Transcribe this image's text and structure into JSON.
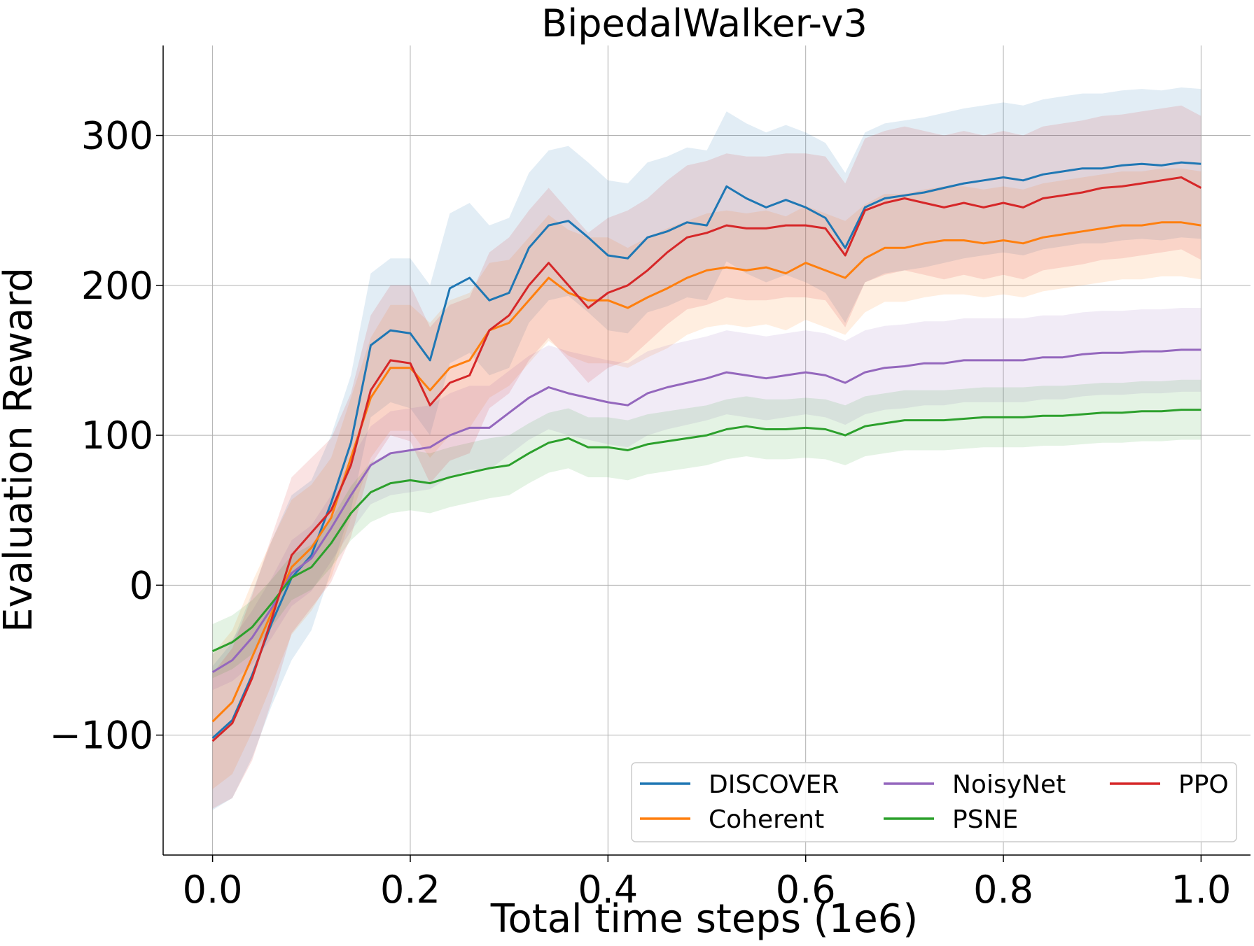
{
  "chart_data": {
    "type": "line",
    "title": "BipedalWalker-v3",
    "xlabel": "Total time steps (1e6)",
    "ylabel": "Evaluation Reward",
    "xlim": [
      -0.05,
      1.05
    ],
    "ylim": [
      -180,
      360
    ],
    "xticks": [
      0.0,
      0.2,
      0.4,
      0.6,
      0.8,
      1.0
    ],
    "xtick_labels": [
      "0.0",
      "0.2",
      "0.4",
      "0.6",
      "0.8",
      "1.0"
    ],
    "yticks": [
      -100,
      0,
      100,
      200,
      300
    ],
    "ytick_labels": [
      "−100",
      "0",
      "100",
      "200",
      "300"
    ],
    "grid": true,
    "legend": {
      "placement": "lower-right",
      "columns": 3
    },
    "x": [
      0.0,
      0.02,
      0.04,
      0.06,
      0.08,
      0.1,
      0.12,
      0.14,
      0.16,
      0.18,
      0.2,
      0.22,
      0.24,
      0.26,
      0.28,
      0.3,
      0.32,
      0.34,
      0.36,
      0.38,
      0.4,
      0.42,
      0.44,
      0.46,
      0.48,
      0.5,
      0.52,
      0.54,
      0.56,
      0.58,
      0.6,
      0.62,
      0.64,
      0.66,
      0.68,
      0.7,
      0.72,
      0.74,
      0.76,
      0.78,
      0.8,
      0.82,
      0.84,
      0.86,
      0.88,
      0.9,
      0.92,
      0.94,
      0.96,
      0.98,
      1.0
    ],
    "series": [
      {
        "name": "DISCOVER",
        "color": "#1f77b4",
        "values": [
          -102,
          -90,
          -60,
          -25,
          5,
          20,
          55,
          95,
          160,
          170,
          168,
          150,
          198,
          205,
          190,
          195,
          225,
          240,
          243,
          232,
          220,
          218,
          232,
          236,
          242,
          240,
          266,
          258,
          252,
          257,
          252,
          245,
          225,
          252,
          258,
          260,
          262,
          265,
          268,
          270,
          272,
          270,
          274,
          276,
          278,
          278,
          280,
          281,
          280,
          282,
          281
        ],
        "band": [
          48,
          52,
          55,
          55,
          55,
          50,
          45,
          45,
          48,
          48,
          50,
          50,
          50,
          50,
          50,
          50,
          50,
          50,
          50,
          50,
          50,
          50,
          50,
          50,
          50,
          50,
          50,
          50,
          50,
          50,
          50,
          50,
          50,
          50,
          50,
          50,
          50,
          50,
          50,
          50,
          50,
          50,
          50,
          50,
          50,
          50,
          50,
          50,
          50,
          50,
          50
        ]
      },
      {
        "name": "Coherent",
        "color": "#ff7f0e",
        "values": [
          -91,
          -78,
          -48,
          -18,
          12,
          25,
          45,
          85,
          125,
          145,
          145,
          130,
          145,
          150,
          170,
          175,
          190,
          205,
          195,
          190,
          190,
          185,
          192,
          198,
          205,
          210,
          212,
          210,
          212,
          208,
          215,
          210,
          205,
          218,
          225,
          225,
          228,
          230,
          230,
          228,
          230,
          228,
          232,
          234,
          236,
          238,
          240,
          240,
          242,
          242,
          240
        ],
        "band": [
          45,
          48,
          50,
          48,
          45,
          42,
          40,
          40,
          40,
          42,
          42,
          45,
          45,
          45,
          45,
          42,
          42,
          42,
          42,
          42,
          42,
          40,
          40,
          40,
          38,
          38,
          38,
          38,
          38,
          38,
          38,
          38,
          38,
          36,
          36,
          36,
          36,
          36,
          36,
          36,
          36,
          36,
          36,
          36,
          36,
          36,
          36,
          36,
          36,
          36,
          36
        ]
      },
      {
        "name": "NoisyNet",
        "color": "#9467bd",
        "values": [
          -58,
          -50,
          -35,
          -15,
          8,
          18,
          38,
          60,
          80,
          88,
          90,
          92,
          100,
          105,
          105,
          115,
          125,
          132,
          128,
          125,
          122,
          120,
          128,
          132,
          135,
          138,
          142,
          140,
          138,
          140,
          142,
          140,
          135,
          142,
          145,
          146,
          148,
          148,
          150,
          150,
          150,
          150,
          152,
          152,
          154,
          155,
          155,
          156,
          156,
          157,
          157
        ],
        "band": [
          12,
          14,
          18,
          20,
          22,
          22,
          22,
          24,
          26,
          28,
          28,
          28,
          28,
          28,
          28,
          28,
          28,
          28,
          28,
          28,
          28,
          28,
          28,
          28,
          28,
          28,
          28,
          28,
          28,
          28,
          28,
          28,
          28,
          28,
          28,
          28,
          28,
          28,
          28,
          28,
          28,
          28,
          28,
          28,
          28,
          28,
          28,
          28,
          28,
          28,
          28
        ]
      },
      {
        "name": "PSNE",
        "color": "#2ca02c",
        "values": [
          -44,
          -38,
          -28,
          -12,
          5,
          12,
          28,
          48,
          62,
          68,
          70,
          68,
          72,
          75,
          78,
          80,
          88,
          95,
          98,
          92,
          92,
          90,
          94,
          96,
          98,
          100,
          104,
          106,
          104,
          104,
          105,
          104,
          100,
          106,
          108,
          110,
          110,
          110,
          111,
          112,
          112,
          112,
          113,
          113,
          114,
          115,
          115,
          116,
          116,
          117,
          117
        ],
        "band": [
          18,
          18,
          18,
          16,
          15,
          15,
          16,
          18,
          20,
          20,
          20,
          20,
          20,
          20,
          20,
          20,
          20,
          20,
          20,
          20,
          20,
          20,
          20,
          20,
          20,
          20,
          20,
          20,
          20,
          20,
          20,
          20,
          20,
          20,
          20,
          20,
          20,
          20,
          20,
          20,
          20,
          20,
          20,
          20,
          20,
          20,
          20,
          20,
          20,
          20,
          20
        ]
      },
      {
        "name": "PPO",
        "color": "#d62728",
        "values": [
          -104,
          -92,
          -62,
          -22,
          20,
          35,
          50,
          80,
          130,
          150,
          148,
          120,
          135,
          140,
          170,
          180,
          200,
          215,
          200,
          185,
          195,
          200,
          210,
          222,
          232,
          235,
          240,
          238,
          238,
          240,
          240,
          238,
          220,
          250,
          255,
          258,
          255,
          252,
          255,
          252,
          255,
          252,
          258,
          260,
          262,
          265,
          266,
          268,
          270,
          272,
          265
        ],
        "band": [
          45,
          50,
          55,
          55,
          52,
          50,
          48,
          48,
          50,
          50,
          52,
          52,
          52,
          52,
          52,
          52,
          50,
          50,
          50,
          50,
          50,
          50,
          48,
          48,
          48,
          48,
          48,
          48,
          48,
          48,
          48,
          48,
          48,
          48,
          48,
          48,
          48,
          48,
          48,
          48,
          48,
          48,
          48,
          48,
          48,
          48,
          48,
          48,
          48,
          48,
          48
        ]
      }
    ]
  }
}
